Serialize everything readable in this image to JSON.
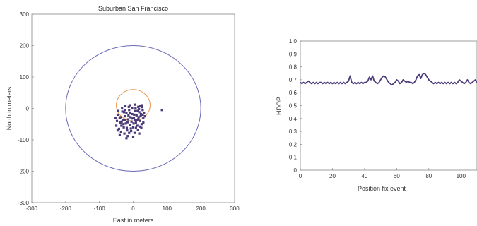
{
  "chart_data": [
    {
      "type": "scatter",
      "title": "Suburban San Francisco",
      "xlabel": "East in meters",
      "ylabel": "North in meters",
      "xlim": [
        -300,
        300
      ],
      "ylim": [
        -300,
        300
      ],
      "xticks": [
        "-300",
        "-200",
        "-100",
        "0",
        "100",
        "200",
        "300"
      ],
      "yticks": [
        "300",
        "200",
        "100",
        "0",
        "-100",
        "-200",
        "-300"
      ],
      "circles": [
        {
          "cx": 0,
          "cy": 0,
          "r": 200,
          "color": "#6a6ab8"
        },
        {
          "cx": 0,
          "cy": 10,
          "r": 50,
          "color": "#e8944c"
        }
      ],
      "series": [
        {
          "color": "#4b3a78",
          "points": [
            [
              -45,
              -20
            ],
            [
              -40,
              -30
            ],
            [
              -38,
              -45
            ],
            [
              -35,
              -55
            ],
            [
              -32,
              -10
            ],
            [
              -30,
              -38
            ],
            [
              -28,
              -60
            ],
            [
              -25,
              -25
            ],
            [
              -22,
              -48
            ],
            [
              -20,
              -15
            ],
            [
              -18,
              -70
            ],
            [
              -15,
              -35
            ],
            [
              -12,
              -5
            ],
            [
              -10,
              -52
            ],
            [
              -8,
              -28
            ],
            [
              -5,
              -42
            ],
            [
              -3,
              -18
            ],
            [
              0,
              -60
            ],
            [
              2,
              -30
            ],
            [
              5,
              -8
            ],
            [
              8,
              -45
            ],
            [
              10,
              -22
            ],
            [
              12,
              -55
            ],
            [
              15,
              -35
            ],
            [
              18,
              -12
            ],
            [
              20,
              -40
            ],
            [
              22,
              -25
            ],
            [
              25,
              -50
            ],
            [
              28,
              -5
            ],
            [
              30,
              -30
            ],
            [
              32,
              -15
            ],
            [
              -42,
              -65
            ],
            [
              -36,
              -75
            ],
            [
              -26,
              -80
            ],
            [
              -16,
              -88
            ],
            [
              -6,
              -72
            ],
            [
              4,
              -78
            ],
            [
              14,
              -68
            ],
            [
              24,
              -62
            ],
            [
              -48,
              -40
            ],
            [
              -50,
              -55
            ],
            [
              -33,
              0
            ],
            [
              -23,
              8
            ],
            [
              -13,
              5
            ],
            [
              -3,
              0
            ],
            [
              7,
              2
            ],
            [
              17,
              -2
            ],
            [
              27,
              4
            ],
            [
              -44,
              -8
            ],
            [
              -29,
              -50
            ],
            [
              -19,
              -62
            ],
            [
              -9,
              -15
            ],
            [
              1,
              -48
            ],
            [
              11,
              -38
            ],
            [
              21,
              -58
            ],
            [
              -37,
              -28
            ],
            [
              -27,
              -12
            ],
            [
              -17,
              -44
            ],
            [
              -7,
              -64
            ],
            [
              3,
              -20
            ],
            [
              13,
              -8
            ],
            [
              23,
              -18
            ],
            [
              -40,
              -85
            ],
            [
              -20,
              -95
            ],
            [
              0,
              -90
            ],
            [
              15,
              5
            ],
            [
              5,
              12
            ],
            [
              -10,
              10
            ],
            [
              -25,
              -5
            ],
            [
              30,
              -45
            ],
            [
              35,
              -25
            ],
            [
              -52,
              -30
            ],
            [
              -46,
              -70
            ],
            [
              18,
              -80
            ],
            [
              28,
              -20
            ],
            [
              -14,
              -22
            ],
            [
              -4,
              -32
            ],
            [
              6,
              -38
            ],
            [
              16,
              -28
            ],
            [
              -34,
              -42
            ],
            [
              -24,
              -36
            ],
            [
              8,
              -62
            ],
            [
              -12,
              -78
            ],
            [
              20,
              8
            ],
            [
              25,
              10
            ],
            [
              85,
              -5
            ]
          ]
        }
      ]
    },
    {
      "type": "line",
      "title": "",
      "xlabel": "Position fix event",
      "ylabel": "HDOP",
      "xlim": [
        0,
        110
      ],
      "ylim": [
        0,
        1.0
      ],
      "xticks": [
        "0",
        "20",
        "40",
        "60",
        "80",
        "100"
      ],
      "yticks": [
        "0",
        "0.1",
        "0.2",
        "0.3",
        "0.4",
        "0.5",
        "0.6",
        "0.7",
        "0.8",
        "0.9",
        "1.0"
      ],
      "series": [
        {
          "color": "#4b3a78",
          "x": [
            0,
            1,
            2,
            3,
            4,
            5,
            6,
            7,
            8,
            9,
            10,
            11,
            12,
            13,
            14,
            15,
            16,
            17,
            18,
            19,
            20,
            21,
            22,
            23,
            24,
            25,
            26,
            27,
            28,
            29,
            30,
            31,
            32,
            33,
            34,
            35,
            36,
            37,
            38,
            39,
            40,
            41,
            42,
            43,
            44,
            45,
            46,
            47,
            48,
            49,
            50,
            51,
            52,
            53,
            54,
            55,
            56,
            57,
            58,
            59,
            60,
            61,
            62,
            63,
            64,
            65,
            66,
            67,
            68,
            69,
            70,
            71,
            72,
            73,
            74,
            75,
            76,
            77,
            78,
            79,
            80,
            81,
            82,
            83,
            84,
            85,
            86,
            87,
            88,
            89,
            90,
            91,
            92,
            93,
            94,
            95,
            96,
            97,
            98,
            99,
            100,
            101,
            102,
            103,
            104,
            105,
            106,
            107,
            108,
            109,
            110
          ],
          "y": [
            0.68,
            0.67,
            0.68,
            0.67,
            0.68,
            0.69,
            0.68,
            0.67,
            0.68,
            0.67,
            0.68,
            0.67,
            0.68,
            0.68,
            0.67,
            0.68,
            0.67,
            0.68,
            0.67,
            0.68,
            0.67,
            0.68,
            0.67,
            0.68,
            0.67,
            0.68,
            0.67,
            0.68,
            0.67,
            0.68,
            0.69,
            0.73,
            0.68,
            0.67,
            0.68,
            0.67,
            0.68,
            0.67,
            0.68,
            0.67,
            0.68,
            0.68,
            0.69,
            0.72,
            0.7,
            0.73,
            0.69,
            0.68,
            0.67,
            0.68,
            0.7,
            0.72,
            0.73,
            0.72,
            0.7,
            0.68,
            0.67,
            0.66,
            0.67,
            0.68,
            0.7,
            0.69,
            0.67,
            0.68,
            0.7,
            0.69,
            0.68,
            0.69,
            0.68,
            0.68,
            0.67,
            0.68,
            0.7,
            0.73,
            0.74,
            0.71,
            0.74,
            0.75,
            0.74,
            0.72,
            0.7,
            0.69,
            0.68,
            0.67,
            0.68,
            0.67,
            0.68,
            0.67,
            0.68,
            0.67,
            0.68,
            0.67,
            0.68,
            0.67,
            0.68,
            0.67,
            0.68,
            0.67,
            0.68,
            0.7,
            0.69,
            0.68,
            0.67,
            0.68,
            0.7,
            0.68,
            0.67,
            0.68,
            0.69,
            0.7,
            0.68
          ]
        }
      ]
    }
  ]
}
